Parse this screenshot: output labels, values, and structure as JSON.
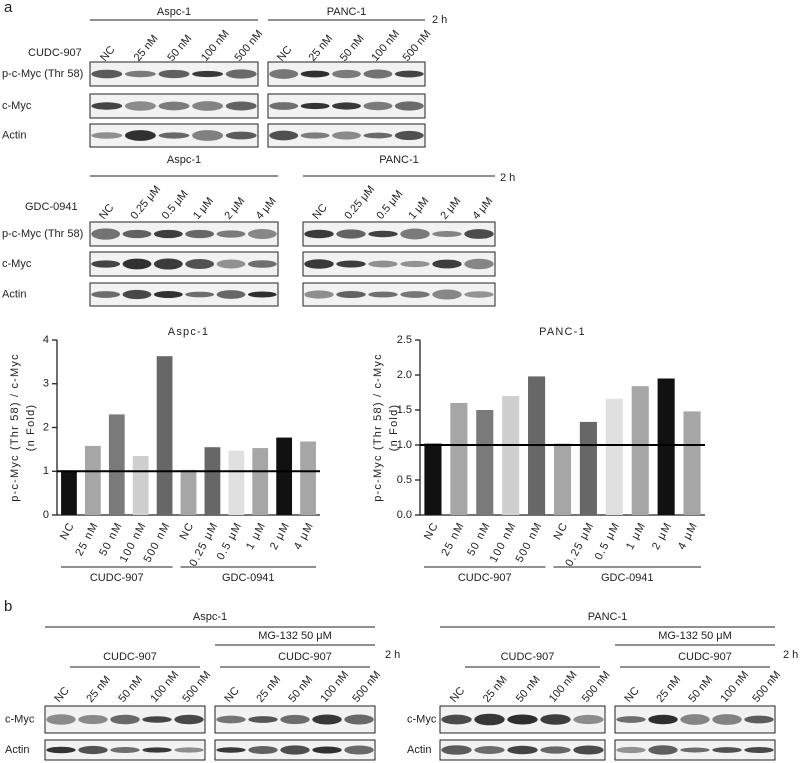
{
  "panel_a": {
    "label": "a",
    "blots": [
      {
        "cell_lines": [
          "Aspc-1",
          "PANC-1"
        ],
        "time": "2 h",
        "treatment": "CUDC-907",
        "lanes": [
          "NC",
          "25 nM",
          "50 nM",
          "100 nM",
          "500 nM"
        ],
        "rows": [
          "p-c-Myc (Thr 58)",
          "c-Myc",
          "Actin"
        ]
      },
      {
        "cell_lines": [
          "Aspc-1",
          "PANC-1"
        ],
        "time": "2 h",
        "treatment": "GDC-0941",
        "lanes": [
          "NC",
          "0.25 μM",
          "0.5 μM",
          "1 μM",
          "2 μM",
          "4 μM"
        ],
        "rows": [
          "p-c-Myc (Thr 58)",
          "c-Myc",
          "Actin"
        ]
      }
    ]
  },
  "chart_data": [
    {
      "type": "bar",
      "title": "Aspc-1",
      "ylabel": [
        "p-c-Myc (Thr 58) / c-Myc",
        "(n Fold)"
      ],
      "ylim": [
        0,
        4
      ],
      "yticks": [
        0,
        1,
        2,
        3,
        4
      ],
      "hline": 1,
      "groups": [
        {
          "name": "CUDC-907",
          "categories": [
            "NC",
            "25 nM",
            "50 nM",
            "100 nM",
            "500 nM"
          ],
          "values": [
            1.02,
            1.58,
            2.3,
            1.35,
            3.63
          ],
          "colors": [
            "#111111",
            "#a6a6a6",
            "#7a7a7a",
            "#cfcfcf",
            "#676767"
          ]
        },
        {
          "name": "GDC-0941",
          "categories": [
            "NC",
            "0.25 μM",
            "0.5 μM",
            "1 μM",
            "2 μM",
            "4 μM"
          ],
          "values": [
            1.03,
            1.55,
            1.47,
            1.53,
            1.77,
            1.68
          ],
          "colors": [
            "#a6a6a6",
            "#676767",
            "#e0e0e0",
            "#a6a6a6",
            "#111111",
            "#a6a6a6"
          ]
        }
      ]
    },
    {
      "type": "bar",
      "title": "PANC-1",
      "ylabel": [
        "p-c-Myc (Thr 58) / c-Myc",
        "(n Fold)"
      ],
      "ylim": [
        0,
        2.5
      ],
      "yticks": [
        {
          "value": 0,
          "label": "0.0"
        },
        0.5,
        {
          "value": 1,
          "label": "1.0"
        },
        1.5,
        {
          "value": 2,
          "label": "2.0"
        },
        2.5
      ],
      "hline": 1,
      "groups": [
        {
          "name": "CUDC-907",
          "categories": [
            "NC",
            "25 nM",
            "50 nM",
            "100 nM",
            "500 nM"
          ],
          "values": [
            1.02,
            1.6,
            1.5,
            1.7,
            1.98
          ],
          "colors": [
            "#111111",
            "#a6a6a6",
            "#7a7a7a",
            "#cfcfcf",
            "#676767"
          ]
        },
        {
          "name": "GDC-0941",
          "categories": [
            "NC",
            "0.25 μM",
            "0.5 μM",
            "1 μM",
            "2 μM",
            "4 μM"
          ],
          "values": [
            1.02,
            1.33,
            1.66,
            1.84,
            1.95,
            1.48
          ],
          "colors": [
            "#a6a6a6",
            "#676767",
            "#e0e0e0",
            "#a6a6a6",
            "#111111",
            "#a6a6a6"
          ]
        }
      ]
    }
  ],
  "panel_b": {
    "label": "b",
    "time": "2 h",
    "rows": [
      "c-Myc",
      "Actin"
    ],
    "blots": [
      {
        "cell_line": "Aspc-1",
        "sets": [
          {
            "treatment": "CUDC-907",
            "lanes": [
              "NC",
              "25 nM",
              "50 nM",
              "100 nM",
              "500 nM"
            ]
          },
          {
            "pretreatment": "MG-132 50 μM",
            "treatment": "CUDC-907",
            "lanes": [
              "NC",
              "25 nM",
              "50 nM",
              "100 nM",
              "500 nM"
            ]
          }
        ]
      },
      {
        "cell_line": "PANC-1",
        "sets": [
          {
            "treatment": "CUDC-907",
            "lanes": [
              "NC",
              "25 nM",
              "50 nM",
              "100 nM",
              "500 nM"
            ]
          },
          {
            "pretreatment": "MG-132 50 μM",
            "treatment": "CUDC-907",
            "lanes": [
              "NC",
              "25 nM",
              "50 nM",
              "100 nM",
              "500 nM"
            ]
          }
        ]
      }
    ]
  }
}
